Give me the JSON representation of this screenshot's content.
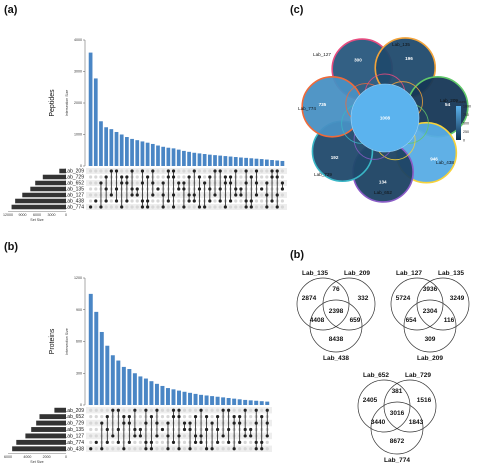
{
  "panels": {
    "a": "(a)",
    "b_left": "(b)",
    "c": "(c)",
    "b_right": "(b)"
  },
  "chart_data": [
    {
      "type": "bar",
      "panel": "(a)",
      "ylabel": "Peptides",
      "bar_axis_title": "Intersection Size",
      "set_axis_title": "Set Size",
      "ylim": [
        0,
        4000
      ],
      "yticks": [
        0,
        1000,
        2000,
        3000,
        4000
      ],
      "set_ticks": [
        "12000",
        "9000",
        "6000",
        "3000",
        "0"
      ],
      "set_xlim": [
        0,
        13000
      ],
      "bar_color": "#4a86c5",
      "sets": [
        "Lab_209",
        "Lab_729",
        "Lab_652",
        "Lab_135",
        "Lab_127",
        "Lab_438",
        "Lab_774"
      ],
      "set_sizes": [
        1500,
        5200,
        6900,
        8000,
        9800,
        11400,
        12200
      ],
      "values": [
        3600,
        2780,
        1420,
        1230,
        1170,
        1080,
        1000,
        920,
        860,
        820,
        780,
        740,
        700,
        650,
        610,
        580,
        560,
        520,
        480,
        450,
        420,
        400,
        380,
        360,
        345,
        330,
        315,
        300,
        285,
        270,
        258,
        245,
        232,
        220,
        205,
        190,
        175,
        160
      ],
      "matrix_color": "#222222",
      "matrix_stripe": "#eeeeee"
    },
    {
      "type": "bar",
      "panel": "(b)",
      "ylabel": "Proteins",
      "bar_axis_title": "Intersection Size",
      "set_axis_title": "Set Size",
      "ylim": [
        0,
        1200
      ],
      "yticks": [
        0,
        300,
        600,
        900,
        1200
      ],
      "set_ticks": [
        "6000",
        "4000",
        "2000",
        "0"
      ],
      "set_xlim": [
        0,
        7000
      ],
      "bar_color": "#4a86c5",
      "sets": [
        "Lab_209",
        "Lab_652",
        "Lab_729",
        "Lab_135",
        "Lab_127",
        "Lab_774",
        "Lab_438"
      ],
      "set_sizes": [
        1400,
        3200,
        3600,
        4200,
        4900,
        6000,
        6500
      ],
      "values": [
        1050,
        880,
        690,
        560,
        470,
        420,
        360,
        340,
        300,
        270,
        250,
        225,
        200,
        180,
        160,
        148,
        136,
        125,
        115,
        105,
        96,
        90,
        84,
        78,
        72,
        66,
        60,
        54,
        48,
        44,
        40,
        36,
        32
      ],
      "matrix_color": "#222222",
      "matrix_stripe": "#eeeeee"
    },
    {
      "type": "heatmap",
      "panel": "(c)",
      "diagram": "flower",
      "sets": [
        "Lab_127",
        "Lab_135",
        "Lab_209",
        "Lab_438",
        "Lab_652",
        "Lab_729",
        "Lab_774"
      ],
      "petal_values": [
        "300",
        "196",
        "54",
        "946",
        "134",
        "192",
        "735"
      ],
      "core_value": "1008",
      "legend_title": "Count",
      "legend_ticks": [
        "1000",
        "750",
        "500",
        "250",
        "0"
      ],
      "color_low": "#12304d",
      "color_high": "#5bb3ee",
      "ring_colors": [
        "#e64b7f",
        "#f2a33a",
        "#61c86a",
        "#f7d23a",
        "#8a5cc7",
        "#39b6c6",
        "#ef6a3a"
      ]
    },
    {
      "type": "table",
      "panel": "(b)",
      "diagram": "venn3",
      "venns": [
        {
          "labels": [
            "Lab_135",
            "Lab_209",
            "Lab_438"
          ],
          "regions": {
            "a": "2874",
            "ab": "76",
            "b": "332",
            "ac": "4408",
            "abc": "2398",
            "bc": "659",
            "c": "8438"
          }
        },
        {
          "labels": [
            "Lab_127",
            "Lab_135",
            "Lab_209"
          ],
          "regions": {
            "a": "5724",
            "ab": "3936",
            "b": "3249",
            "ac": "654",
            "abc": "2304",
            "bc": "116",
            "c": "309"
          }
        },
        {
          "labels": [
            "Lab_652",
            "Lab_729",
            "Lab_774"
          ],
          "regions": {
            "a": "2405",
            "ab": "381",
            "b": "1516",
            "ac": "3440",
            "abc": "3016",
            "bc": "1843",
            "c": "8672"
          }
        }
      ]
    }
  ]
}
